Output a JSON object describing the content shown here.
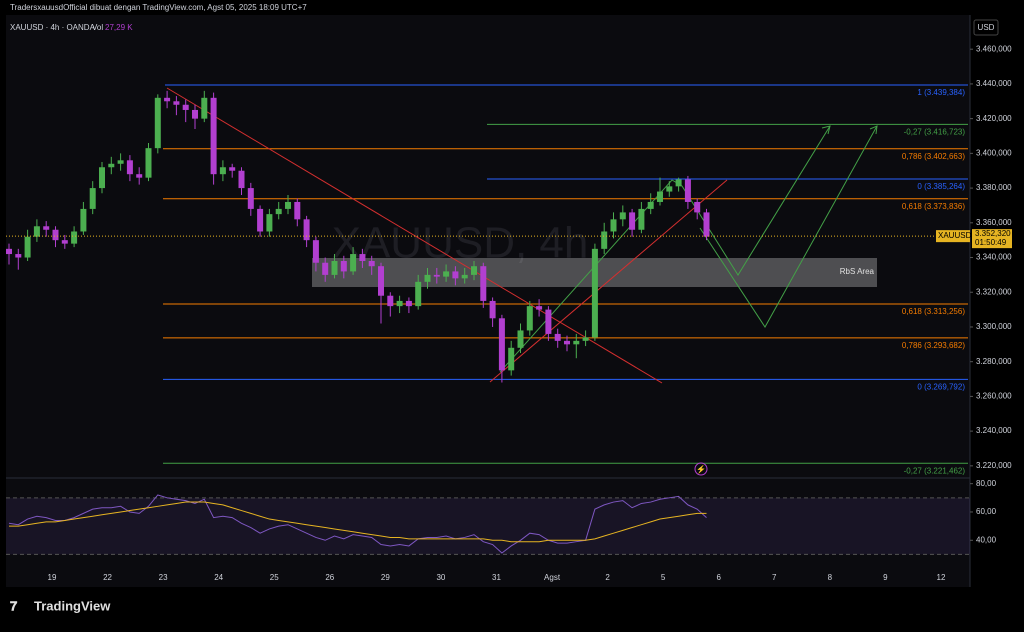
{
  "header": {
    "credit": "TradersxauusdOfficial dibuat dengan TradingView.com, Agst 05, 2025 18:09 UTC+7",
    "symbol": "XAUUSD · 4h · OANDA",
    "vol_label": "Vol",
    "vol_value": "27,29 K"
  },
  "watermark": "XAUUSD, 4h",
  "currency": "USD",
  "chart_data": {
    "type": "candlestick",
    "candles": [
      [
        3345,
        3348,
        3336,
        3342
      ],
      [
        3342,
        3345,
        3333,
        3340
      ],
      [
        3340,
        3356,
        3338,
        3352
      ],
      [
        3352,
        3362,
        3349,
        3358
      ],
      [
        3358,
        3361,
        3352,
        3356
      ],
      [
        3356,
        3358,
        3346,
        3350
      ],
      [
        3350,
        3353,
        3345,
        3348
      ],
      [
        3348,
        3358,
        3346,
        3355
      ],
      [
        3355,
        3372,
        3353,
        3368
      ],
      [
        3368,
        3384,
        3365,
        3380
      ],
      [
        3380,
        3395,
        3377,
        3392
      ],
      [
        3392,
        3398,
        3388,
        3394
      ],
      [
        3394,
        3400,
        3390,
        3396
      ],
      [
        3396,
        3399,
        3384,
        3388
      ],
      [
        3388,
        3392,
        3382,
        3386
      ],
      [
        3386,
        3406,
        3384,
        3403
      ],
      [
        3403,
        3434,
        3400,
        3432
      ],
      [
        3432,
        3436,
        3426,
        3430
      ],
      [
        3430,
        3433,
        3422,
        3428
      ],
      [
        3428,
        3431,
        3418,
        3425
      ],
      [
        3425,
        3428,
        3414,
        3420
      ],
      [
        3420,
        3436,
        3418,
        3432
      ],
      [
        3432,
        3435,
        3382,
        3388
      ],
      [
        3388,
        3396,
        3384,
        3392
      ],
      [
        3392,
        3394,
        3386,
        3390
      ],
      [
        3390,
        3392,
        3376,
        3380
      ],
      [
        3380,
        3383,
        3364,
        3368
      ],
      [
        3368,
        3370,
        3352,
        3355
      ],
      [
        3355,
        3368,
        3352,
        3365
      ],
      [
        3365,
        3372,
        3362,
        3368
      ],
      [
        3368,
        3376,
        3365,
        3372
      ],
      [
        3372,
        3374,
        3358,
        3362
      ],
      [
        3362,
        3364,
        3346,
        3350
      ],
      [
        3350,
        3352,
        3332,
        3337
      ],
      [
        3337,
        3340,
        3326,
        3330
      ],
      [
        3330,
        3342,
        3328,
        3338
      ],
      [
        3338,
        3341,
        3328,
        3332
      ],
      [
        3332,
        3346,
        3330,
        3342
      ],
      [
        3342,
        3345,
        3334,
        3338
      ],
      [
        3338,
        3341,
        3330,
        3335
      ],
      [
        3335,
        3337,
        3302,
        3318
      ],
      [
        3318,
        3320,
        3306,
        3312
      ],
      [
        3312,
        3318,
        3308,
        3315
      ],
      [
        3315,
        3317,
        3308,
        3312
      ],
      [
        3312,
        3330,
        3310,
        3326
      ],
      [
        3326,
        3334,
        3322,
        3330
      ],
      [
        3330,
        3334,
        3325,
        3329
      ],
      [
        3329,
        3336,
        3326,
        3332
      ],
      [
        3332,
        3335,
        3324,
        3328
      ],
      [
        3328,
        3334,
        3325,
        3330
      ],
      [
        3330,
        3338,
        3327,
        3335
      ],
      [
        3335,
        3337,
        3311,
        3315
      ],
      [
        3315,
        3317,
        3300,
        3305
      ],
      [
        3305,
        3307,
        3268,
        3275
      ],
      [
        3275,
        3292,
        3272,
        3288
      ],
      [
        3288,
        3302,
        3285,
        3298
      ],
      [
        3298,
        3315,
        3295,
        3312
      ],
      [
        3312,
        3316,
        3306,
        3310
      ],
      [
        3310,
        3312,
        3292,
        3296
      ],
      [
        3296,
        3299,
        3288,
        3292
      ],
      [
        3292,
        3295,
        3286,
        3290
      ],
      [
        3290,
        3296,
        3282,
        3292
      ],
      [
        3292,
        3298,
        3289,
        3294
      ],
      [
        3294,
        3348,
        3292,
        3345
      ],
      [
        3345,
        3360,
        3342,
        3355
      ],
      [
        3355,
        3366,
        3351,
        3362
      ],
      [
        3362,
        3370,
        3358,
        3366
      ],
      [
        3366,
        3368,
        3352,
        3356
      ],
      [
        3356,
        3372,
        3354,
        3368
      ],
      [
        3368,
        3377,
        3365,
        3372
      ],
      [
        3372,
        3386,
        3370,
        3378
      ],
      [
        3378,
        3384,
        3375,
        3381
      ],
      [
        3381,
        3386,
        3378,
        3385
      ],
      [
        3385,
        3387,
        3368,
        3372
      ],
      [
        3372,
        3374,
        3362,
        3366
      ],
      [
        3366,
        3368,
        3350,
        3352
      ]
    ],
    "up_color": "#4caf50",
    "down_color": "#b23fd0",
    "x_labels": [
      "19",
      "22",
      "23",
      "24",
      "25",
      "26",
      "29",
      "30",
      "31",
      "Agst",
      "2",
      "5",
      "6",
      "7",
      "8",
      "9",
      "12"
    ],
    "ylim": [
      3213,
      3479.7
    ],
    "yticks": [
      {
        "value": 3460,
        "label": "3.460,000"
      },
      {
        "value": 3440,
        "label": "3.440,000"
      },
      {
        "value": 3420,
        "label": "3.420,000"
      },
      {
        "value": 3400,
        "label": "3.400,000"
      },
      {
        "value": 3380,
        "label": "3.380,000"
      },
      {
        "value": 3360,
        "label": "3.360,000"
      },
      {
        "value": 3340,
        "label": "3.340,000"
      },
      {
        "value": 3320,
        "label": "3.320,000"
      },
      {
        "value": 3300,
        "label": "3.300,000"
      },
      {
        "value": 3280,
        "label": "3.280,000"
      },
      {
        "value": 3260,
        "label": "3.260,000"
      },
      {
        "value": 3240,
        "label": "3.240,000"
      },
      {
        "value": 3220,
        "label": "3.220,000"
      }
    ],
    "levels": [
      {
        "value": 3439.384,
        "label": "1 (3.439,384)",
        "color": "#2962ff"
      },
      {
        "value": 3416.723,
        "label": "-0,27 (3.416,723)",
        "color": "#43a047"
      },
      {
        "value": 3402.663,
        "label": "0,786 (3.402,663)",
        "color": "#f57c00"
      },
      {
        "value": 3385.264,
        "label": "0 (3.385,264)",
        "color": "#2962ff"
      },
      {
        "value": 3373.836,
        "label": "0,618 (3.373,836)",
        "color": "#f57c00"
      },
      {
        "value": 3313.256,
        "label": "0,618 (3.313,256)",
        "color": "#f57c00"
      },
      {
        "value": 3293.682,
        "label": "0,786 (3.293,682)",
        "color": "#f57c00"
      },
      {
        "value": 3269.792,
        "label": "0 (3.269,792)",
        "color": "#2962ff"
      },
      {
        "value": 3221.462,
        "label": "-0,27 (3.221,462)",
        "color": "#43a047"
      }
    ],
    "last_price": {
      "value": 3352.32,
      "symbol": "XAUUSD",
      "label": "3.352,320",
      "countdown": "01:50:49"
    },
    "zone_label": "RbS Area",
    "rsi": {
      "values": [
        52,
        51,
        55,
        57,
        56,
        54,
        54,
        56,
        59,
        62,
        63,
        63,
        64,
        60,
        59,
        64,
        72,
        70,
        69,
        68,
        66,
        69,
        56,
        57,
        56,
        52,
        49,
        45,
        48,
        50,
        51,
        48,
        45,
        42,
        40,
        43,
        41,
        44,
        43,
        42,
        37,
        36,
        37,
        36,
        41,
        42,
        42,
        43,
        41,
        42,
        44,
        39,
        37,
        31,
        36,
        40,
        45,
        44,
        40,
        38,
        38,
        39,
        40,
        62,
        65,
        67,
        68,
        63,
        66,
        67,
        69,
        70,
        71,
        65,
        62,
        56
      ],
      "ma": [
        50,
        50,
        51,
        52,
        53,
        53,
        54,
        55,
        56,
        57,
        58,
        59,
        60,
        61,
        62,
        63,
        64,
        65,
        66,
        67,
        67,
        67,
        66,
        65,
        63,
        61,
        59,
        57,
        55,
        54,
        53,
        52,
        51,
        50,
        49,
        48,
        47,
        46,
        45,
        44,
        43,
        42,
        42,
        41,
        41,
        41,
        41,
        41,
        41,
        41,
        41,
        41,
        40,
        40,
        39,
        39,
        39,
        39,
        40,
        40,
        40,
        40,
        40,
        41,
        43,
        45,
        47,
        49,
        51,
        53,
        55,
        56,
        57,
        58,
        59,
        59
      ],
      "color": "#7e57c2",
      "ma_color": "#e6b422",
      "bands": [
        70,
        30
      ],
      "ylim": [
        19,
        84
      ],
      "yticks": [
        {
          "value": 80,
          "label": "80,00"
        },
        {
          "value": 60,
          "label": "60,00"
        },
        {
          "value": 40,
          "label": "40,00"
        }
      ]
    }
  },
  "footer": {
    "brand": "TradingView"
  }
}
